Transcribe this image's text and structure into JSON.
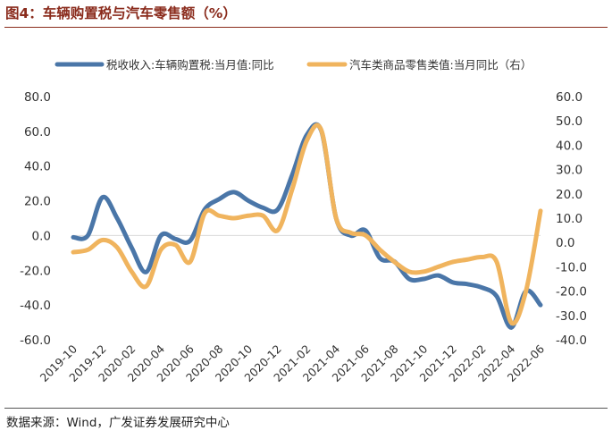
{
  "title": "图4：车辆购置税与汽车零售额（%）",
  "source": "数据来源：Wind，广发证券发展研究中心",
  "chart_data": {
    "type": "line",
    "x": [
      "2019-10",
      "2019-11",
      "2019-12",
      "2020-01",
      "2020-02",
      "2020-03",
      "2020-04",
      "2020-05",
      "2020-06",
      "2020-07",
      "2020-08",
      "2020-09",
      "2020-10",
      "2020-11",
      "2020-12",
      "2021-01",
      "2021-02",
      "2021-03",
      "2021-04",
      "2021-05",
      "2021-06",
      "2021-07",
      "2021-08",
      "2021-09",
      "2021-10",
      "2021-11",
      "2021-12",
      "2022-01",
      "2022-02",
      "2022-03",
      "2022-04",
      "2022-05",
      "2022-06"
    ],
    "x_tick_labels": [
      "2019-10",
      "2019-12",
      "2020-02",
      "2020-04",
      "2020-06",
      "2020-08",
      "2020-10",
      "2020-12",
      "2021-02",
      "2021-04",
      "2021-06",
      "2021-08",
      "2021-10",
      "2021-12",
      "2022-02",
      "2022-04",
      "2022-06"
    ],
    "series": [
      {
        "name": "税收收入:车辆购置税:当月值:同比",
        "axis": "left",
        "color": "#4a76a8",
        "values": [
          -1,
          0,
          22,
          10,
          -7,
          -21,
          0,
          -2,
          -3,
          15,
          21,
          25,
          20,
          16,
          15,
          35,
          58,
          60,
          10,
          0,
          3,
          -13,
          -15,
          -25,
          -25,
          -23,
          -27,
          -28,
          -30,
          -35,
          -53,
          -32,
          -40
        ]
      },
      {
        "name": "汽车类商品零售类值:当月同比（右）",
        "axis": "right",
        "color": "#f0b45e",
        "values": [
          -4,
          -3,
          1,
          -2,
          -12,
          -18,
          -3,
          -1,
          -8,
          12,
          11,
          10,
          11,
          11,
          5,
          22,
          42,
          46,
          10,
          4,
          3,
          -3,
          -8,
          -12,
          -12,
          -10,
          -8,
          -7,
          -6,
          -8,
          -33,
          -20,
          13
        ]
      }
    ],
    "y_left": {
      "ylim": [
        -60,
        80
      ],
      "ticks": [
        "80.0",
        "60.0",
        "40.0",
        "20.0",
        "0.0",
        "-20.0",
        "-40.0",
        "-60.0"
      ]
    },
    "y_right": {
      "ylim": [
        -40,
        60
      ],
      "ticks": [
        "60.0",
        "50.0",
        "40.0",
        "30.0",
        "20.0",
        "10.0",
        "0.0",
        "-10.0",
        "-20.0",
        "-30.0",
        "-40.0"
      ]
    },
    "legend_position": "top"
  }
}
